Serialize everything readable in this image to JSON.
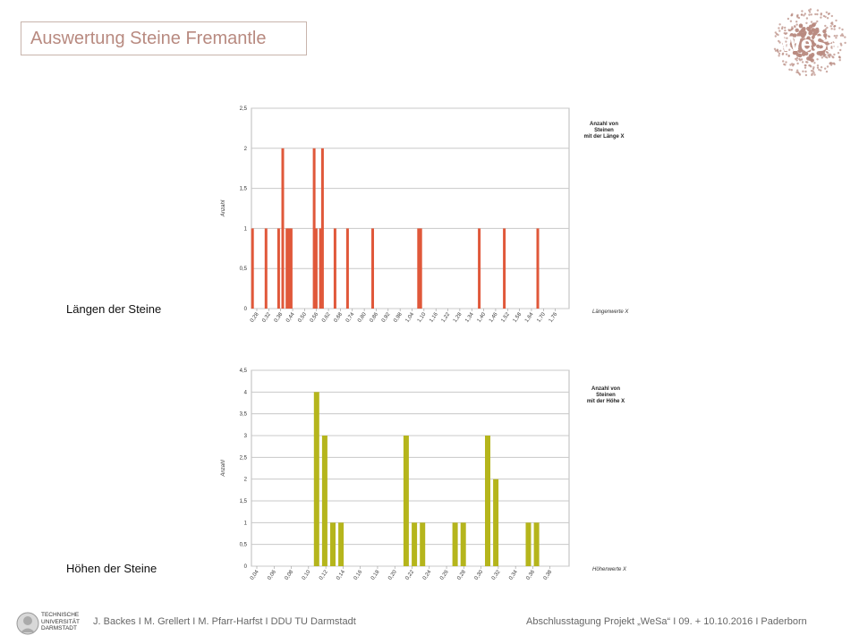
{
  "header": {
    "title": "Auswertung Steine Fremantle",
    "logo_text": "WeSa"
  },
  "labels": {
    "lengths": "Längen der Steine",
    "heights": "Höhen der Steine"
  },
  "footer": {
    "university_lines": [
      "TECHNISCHE",
      "UNIVERSITÄT",
      "DARMSTADT"
    ],
    "authors": "J. Backes I M. Grellert I M. Pfarr-Harfst I DDU TU Darmstadt",
    "event": "Abschlusstagung Projekt „WeSa“ I 09. + 10.10.2016 I Paderborn"
  },
  "colors": {
    "title": "#b88a80",
    "logo": "#b88a80",
    "series_length": "#e0583a",
    "series_height": "#b5b51c",
    "grid": "#c8c8c8"
  },
  "chart_data": [
    {
      "type": "bar",
      "title": "",
      "legend": "Anzahl von Steinen mit der Länge X",
      "legend_lines": [
        "Anzahl von",
        "Steinen",
        "mit der Länge X"
      ],
      "legend_position": "right",
      "ylabel": "Anzahl",
      "xlabel": "Längenwerte X",
      "ylim": [
        0,
        2.5
      ],
      "yticks": [
        "0",
        "0,5",
        "1",
        "1,5",
        "2",
        "2,5"
      ],
      "xlim": [
        0.28,
        1.8
      ],
      "xtick_labels": [
        "0,28",
        "0,32",
        "0,38",
        "0,44",
        "0,50",
        "0,56",
        "0,62",
        "0,68",
        "0,74",
        "0,80",
        "0,86",
        "0,92",
        "0,98",
        "1,04",
        "1,10",
        "1,16",
        "1,22",
        "1,28",
        "1,34",
        "1,40",
        "1,46",
        "1,52",
        "1,58",
        "1,64",
        "1,70",
        "1,76"
      ],
      "grid": true,
      "points": [
        {
          "x": 0.285,
          "y": 1
        },
        {
          "x": 0.35,
          "y": 1
        },
        {
          "x": 0.41,
          "y": 1
        },
        {
          "x": 0.43,
          "y": 2
        },
        {
          "x": 0.45,
          "y": 1
        },
        {
          "x": 0.46,
          "y": 1
        },
        {
          "x": 0.47,
          "y": 1
        },
        {
          "x": 0.58,
          "y": 2
        },
        {
          "x": 0.59,
          "y": 1
        },
        {
          "x": 0.61,
          "y": 1
        },
        {
          "x": 0.62,
          "y": 2
        },
        {
          "x": 0.68,
          "y": 1
        },
        {
          "x": 0.74,
          "y": 1
        },
        {
          "x": 0.86,
          "y": 1
        },
        {
          "x": 1.08,
          "y": 1
        },
        {
          "x": 1.09,
          "y": 1
        },
        {
          "x": 1.37,
          "y": 1
        },
        {
          "x": 1.49,
          "y": 1
        },
        {
          "x": 1.65,
          "y": 1
        }
      ]
    },
    {
      "type": "bar",
      "title": "",
      "legend": "Anzahl von Steinen mit der Höhe X",
      "legend_lines": [
        "Anzahl von",
        "Steinen",
        "mit der Höhe X"
      ],
      "legend_position": "right",
      "ylabel": "Anzahl",
      "xlabel": "Höhenwerte X",
      "ylim": [
        0,
        4.5
      ],
      "yticks": [
        "0",
        "0,5",
        "1",
        "1,5",
        "2",
        "2,5",
        "3",
        "3,5",
        "4",
        "4,5"
      ],
      "xlim": [
        0.03,
        0.42
      ],
      "xtick_labels": [
        "0,04",
        "0,06",
        "0,08",
        "0,10",
        "0,12",
        "0,14",
        "0,16",
        "0,18",
        "0,20",
        "0,22",
        "0,24",
        "0,26",
        "0,28",
        "0,30",
        "0,32",
        "0,34",
        "0,36",
        "0,38"
      ],
      "grid": true,
      "points": [
        {
          "x": 0.11,
          "y": 4
        },
        {
          "x": 0.12,
          "y": 3
        },
        {
          "x": 0.13,
          "y": 1
        },
        {
          "x": 0.14,
          "y": 1
        },
        {
          "x": 0.22,
          "y": 3
        },
        {
          "x": 0.23,
          "y": 1
        },
        {
          "x": 0.24,
          "y": 1
        },
        {
          "x": 0.28,
          "y": 1
        },
        {
          "x": 0.29,
          "y": 1
        },
        {
          "x": 0.32,
          "y": 3
        },
        {
          "x": 0.33,
          "y": 2
        },
        {
          "x": 0.37,
          "y": 1
        },
        {
          "x": 0.38,
          "y": 1
        }
      ]
    }
  ]
}
